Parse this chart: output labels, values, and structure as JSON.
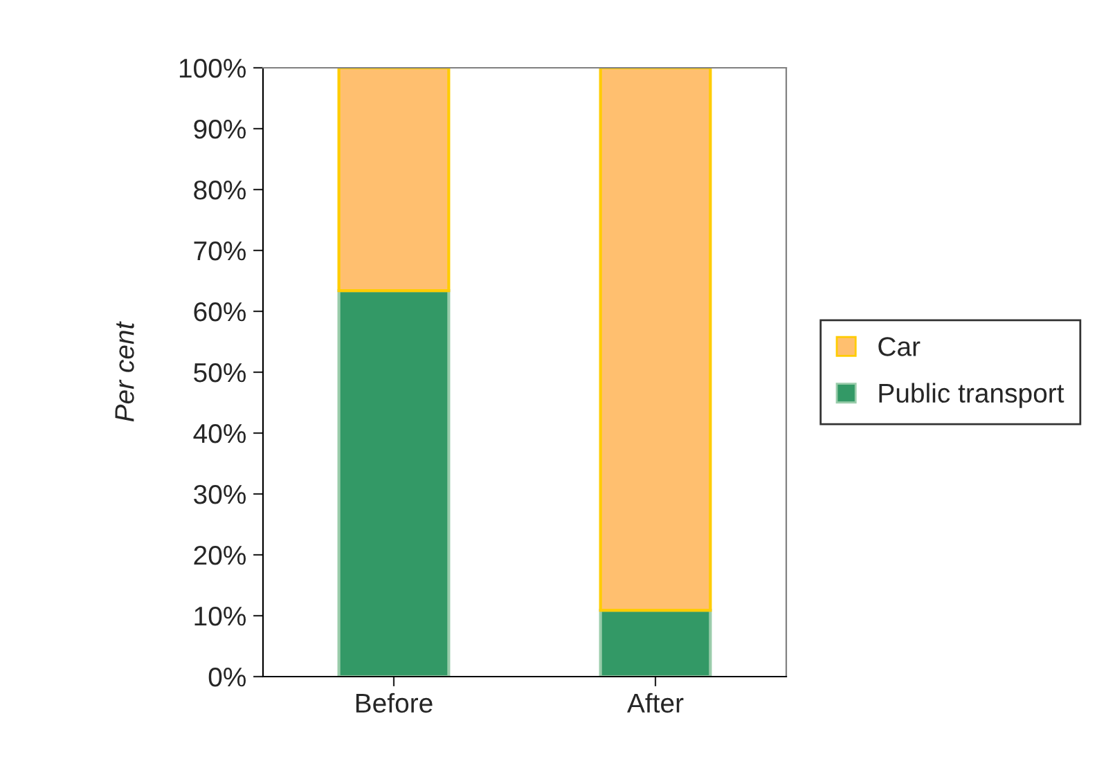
{
  "chart_data": {
    "type": "bar",
    "stacked": true,
    "ylabel": "Per cent",
    "categories": [
      "Before",
      "After"
    ],
    "series": [
      {
        "name": "Public transport",
        "color": "#339966",
        "values": [
          63.4,
          10.9
        ]
      },
      {
        "name": "Car",
        "color": "#ffbf6f",
        "values": [
          36.6,
          89.1
        ]
      }
    ],
    "ylim": [
      0,
      100
    ],
    "yticks": [
      {
        "value": 0,
        "label": "0%"
      },
      {
        "value": 10,
        "label": "10%"
      },
      {
        "value": 20,
        "label": "20%"
      },
      {
        "value": 30,
        "label": "30%"
      },
      {
        "value": 40,
        "label": "40%"
      },
      {
        "value": 50,
        "label": "50%"
      },
      {
        "value": 60,
        "label": "60%"
      },
      {
        "value": 70,
        "label": "70%"
      },
      {
        "value": 80,
        "label": "80%"
      },
      {
        "value": 90,
        "label": "90%"
      },
      {
        "value": 100,
        "label": "100%"
      }
    ],
    "grid": false,
    "legend": "right"
  }
}
